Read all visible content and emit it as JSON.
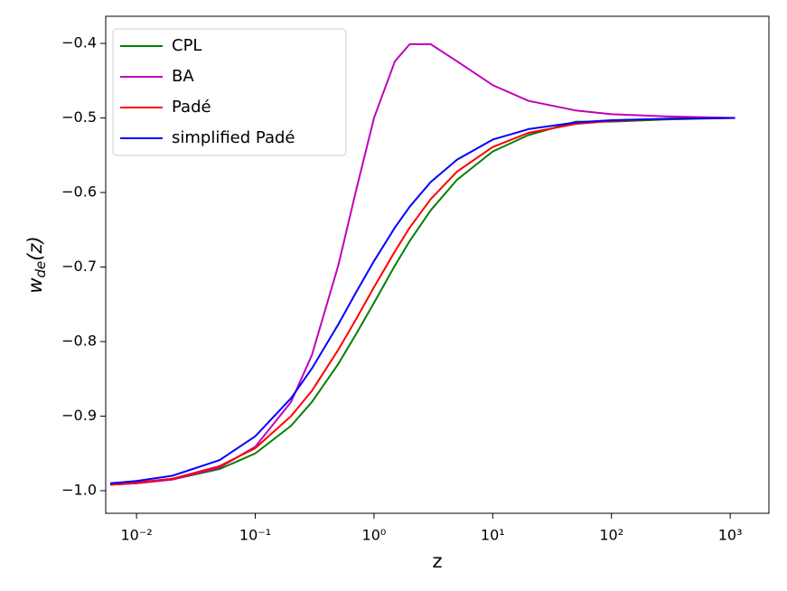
{
  "chart_data": {
    "type": "line",
    "xlabel": "z",
    "ylabel": [
      "w",
      "de",
      "(z)"
    ],
    "x": [
      0.006,
      0.01,
      0.02,
      0.05,
      0.1,
      0.2,
      0.3,
      0.5,
      0.7,
      1,
      1.5,
      2,
      3,
      5,
      10,
      20,
      50,
      100,
      300,
      1100
    ],
    "series": [
      {
        "name": "CPL",
        "color": "#008000",
        "values": [
          -0.992,
          -0.99,
          -0.985,
          -0.971,
          -0.95,
          -0.913,
          -0.881,
          -0.83,
          -0.791,
          -0.748,
          -0.698,
          -0.665,
          -0.624,
          -0.583,
          -0.545,
          -0.523,
          -0.505,
          -0.505,
          -0.502,
          -0.5
        ]
      },
      {
        "name": "BA",
        "color": "#bf00bf",
        "values": [
          -0.992,
          -0.99,
          -0.985,
          -0.969,
          -0.941,
          -0.881,
          -0.818,
          -0.698,
          -0.6,
          -0.5,
          -0.424,
          -0.401,
          -0.401,
          -0.424,
          -0.456,
          -0.477,
          -0.49,
          -0.495,
          -0.498,
          -0.5
        ]
      },
      {
        "name": "Padé",
        "color": "#ff0000",
        "values": [
          -0.992,
          -0.989,
          -0.984,
          -0.967,
          -0.943,
          -0.9,
          -0.866,
          -0.811,
          -0.771,
          -0.727,
          -0.679,
          -0.647,
          -0.609,
          -0.572,
          -0.539,
          -0.52,
          -0.508,
          -0.504,
          -0.501,
          -0.5
        ]
      },
      {
        "name": "simplified Padé",
        "color": "#0000ff",
        "values": [
          -0.99,
          -0.987,
          -0.98,
          -0.959,
          -0.927,
          -0.876,
          -0.836,
          -0.777,
          -0.735,
          -0.692,
          -0.647,
          -0.619,
          -0.586,
          -0.556,
          -0.529,
          -0.515,
          -0.506,
          -0.503,
          -0.501,
          -0.5
        ]
      }
    ],
    "xscale": "log",
    "xlim": [
      0.0055,
      2120
    ],
    "xticks": [
      {
        "value": 0.01,
        "label": "10⁻²"
      },
      {
        "value": 0.1,
        "label": "10⁻¹"
      },
      {
        "value": 1,
        "label": "10⁰"
      },
      {
        "value": 10,
        "label": "10¹"
      },
      {
        "value": 100,
        "label": "10²"
      },
      {
        "value": 1000,
        "label": "10³"
      }
    ],
    "ylim": [
      -1.0303,
      -0.3636
    ],
    "yticks": [
      {
        "value": -1.0,
        "label": "−1.0"
      },
      {
        "value": -0.9,
        "label": "−0.9"
      },
      {
        "value": -0.8,
        "label": "−0.8"
      },
      {
        "value": -0.7,
        "label": "−0.7"
      },
      {
        "value": -0.6,
        "label": "−0.6"
      },
      {
        "value": -0.5,
        "label": "−0.5"
      },
      {
        "value": -0.4,
        "label": "−0.4"
      }
    ],
    "grid": false,
    "legend": "upper left"
  }
}
